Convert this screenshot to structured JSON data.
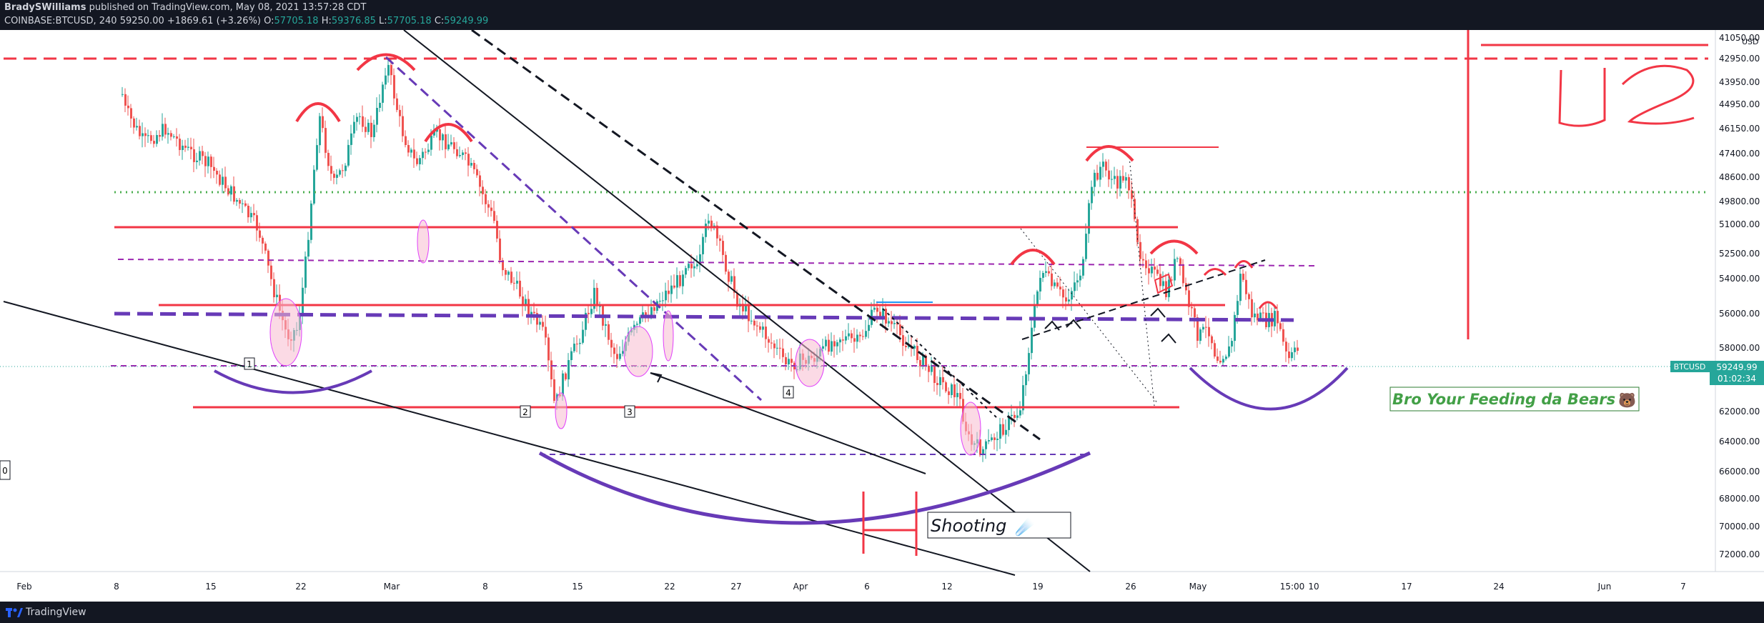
{
  "header": {
    "publisher": "BradySWilliams",
    "published_text": " published on TradingView.com, May 08, 2021 13:57:28 CDT",
    "symbol_text": "COINBASE:BTCUSD, 240",
    "last_value": "59250.00",
    "change": "+1869.61 (+3.26%)",
    "o_label": "O:",
    "o_value": "57705.18",
    "h_label": "H:",
    "h_value": "59376.85",
    "l_label": "L:",
    "l_value": "57705.18",
    "c_label": "C:",
    "c_value": "59249.99"
  },
  "footer": {
    "brand": "TradingView"
  },
  "price_scale": {
    "currency": "USD",
    "labels": [
      "41050.00",
      "42950.00",
      "43950.00",
      "44950.00",
      "46150.00",
      "47400.00",
      "48600.00",
      "49800.00",
      "51000.00",
      "52500.00",
      "54000.00",
      "56000.00",
      "58000.00",
      "60000.00",
      "62000.00",
      "64000.00",
      "66000.00",
      "68000.00",
      "70000.00",
      "72000.00"
    ]
  },
  "price_tag": {
    "symbol": "BTCUSD",
    "price": "59249.99",
    "countdown": "01:02:34"
  },
  "time_axis": {
    "labels": [
      "Feb",
      "8",
      "15",
      "22",
      "Mar",
      "8",
      "15",
      "22",
      "27",
      "Apr",
      "6",
      "12",
      "19",
      "26",
      "May",
      "15:00",
      "10",
      "17",
      "24",
      "Jun",
      "7"
    ]
  },
  "annotations": {
    "bro_text": "Bro Your Feeding da Bears",
    "bro_emoji": "🐻",
    "shooting_text": "Shooting",
    "shooting_emoji": "☄️",
    "wave_labels": [
      "1",
      "2",
      "3",
      "4"
    ],
    "left_badge": "0",
    "handwriting": "52"
  },
  "colors": {
    "up": "#26a69a",
    "down": "#ef5350",
    "resistance": "#f23645",
    "purple": "#673ab7",
    "support_dotted": "#9c27b0",
    "green_dotted": "#4caf50",
    "pink_fill": "#f8bbd0"
  },
  "chart_data": {
    "type": "candlestick",
    "symbol": "COINBASE:BTCUSD",
    "interval": "240",
    "y_axis_labels": [
      41050,
      42950,
      43950,
      44950,
      46150,
      47400,
      48600,
      49800,
      51000,
      52500,
      54000,
      56000,
      58000,
      60000,
      62000,
      64000,
      66000,
      68000,
      70000,
      72000
    ],
    "x_axis_labels": [
      "Feb",
      "8",
      "15",
      "22",
      "Mar",
      "8",
      "15",
      "22",
      "27",
      "Apr",
      "6",
      "12",
      "19",
      "26",
      "May",
      "15:00",
      "10",
      "17",
      "24",
      "Jun",
      "7"
    ],
    "last": {
      "open": 57705.18,
      "high": 59376.85,
      "low": 57705.18,
      "close": 59249.99,
      "change": 1869.61,
      "change_pct": 3.26
    },
    "grid": false
  }
}
